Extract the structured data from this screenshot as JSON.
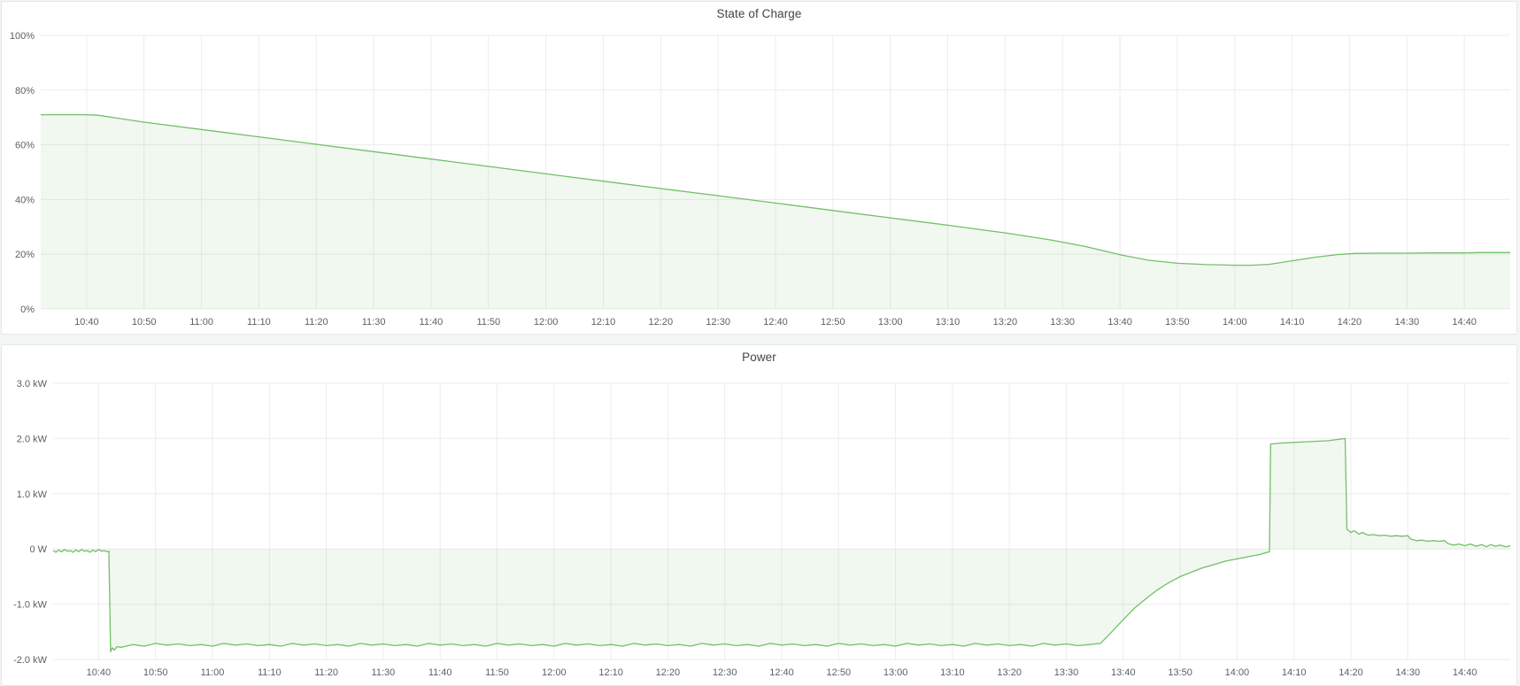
{
  "colors": {
    "series_green": "#73bf69",
    "series_fill": "rgba(115,191,105,0.10)",
    "page_bg": "#f4f5f5",
    "panel_bg": "#ffffff",
    "panel_border": "#e4e7ea",
    "grid_line": "#ececec",
    "axis_text": "#5c6066",
    "title_text": "#434549"
  },
  "panels": [
    {
      "title": "State of Charge"
    },
    {
      "title": "Power"
    }
  ],
  "chart_data": [
    {
      "type": "area",
      "title": "State of Charge",
      "unit": "percent",
      "legend_position": "none",
      "grid": true,
      "line_color": "#73bf69",
      "fill_color": "rgba(115,191,105,0.10)",
      "time_base": "10:30",
      "x_start": "10:32",
      "x_end": "14:48",
      "x_tick_labels": [
        "10:40",
        "10:50",
        "11:00",
        "11:10",
        "11:20",
        "11:30",
        "11:40",
        "11:50",
        "12:00",
        "12:10",
        "12:20",
        "12:30",
        "12:40",
        "12:50",
        "13:00",
        "13:10",
        "13:20",
        "13:30",
        "13:40",
        "13:50",
        "14:00",
        "14:10",
        "14:20",
        "14:30",
        "14:40"
      ],
      "y_tick_labels": [
        "100%",
        "80%",
        "60%",
        "40%",
        "20%",
        "0%"
      ],
      "y_tick_values": [
        100,
        80,
        60,
        40,
        20,
        0
      ],
      "ylim": [
        0,
        100
      ],
      "points": [
        [
          2,
          71
        ],
        [
          7,
          71
        ],
        [
          10,
          71
        ],
        [
          12,
          70.8
        ],
        [
          20,
          68.3
        ],
        [
          30,
          65.6
        ],
        [
          40,
          62.9
        ],
        [
          50,
          60.2
        ],
        [
          60,
          57.5
        ],
        [
          70,
          54.8
        ],
        [
          80,
          52.1
        ],
        [
          90,
          49.4
        ],
        [
          100,
          46.7
        ],
        [
          110,
          44
        ],
        [
          120,
          41.4
        ],
        [
          130,
          38.7
        ],
        [
          140,
          36
        ],
        [
          150,
          33.3
        ],
        [
          160,
          30.6
        ],
        [
          170,
          27.8
        ],
        [
          178,
          25.2
        ],
        [
          184,
          22.8
        ],
        [
          190,
          19.8
        ],
        [
          195,
          17.8
        ],
        [
          200,
          16.7
        ],
        [
          205,
          16.2
        ],
        [
          210,
          16
        ],
        [
          213,
          16
        ],
        [
          216,
          16.3
        ],
        [
          220,
          17.6
        ],
        [
          224,
          18.9
        ],
        [
          228,
          19.9
        ],
        [
          231,
          20.3
        ],
        [
          235,
          20.4
        ],
        [
          240,
          20.4
        ],
        [
          245,
          20.5
        ],
        [
          250,
          20.5
        ],
        [
          253,
          20.6
        ],
        [
          258,
          20.6
        ]
      ]
    },
    {
      "type": "area",
      "title": "Power",
      "unit": "watt",
      "legend_position": "none",
      "grid": true,
      "line_color": "#73bf69",
      "fill_color": "rgba(115,191,105,0.10)",
      "time_base": "10:30",
      "x_start": "10:32",
      "x_end": "14:48",
      "x_tick_labels": [
        "10:40",
        "10:50",
        "11:00",
        "11:10",
        "11:20",
        "11:30",
        "11:40",
        "11:50",
        "12:00",
        "12:10",
        "12:20",
        "12:30",
        "12:40",
        "12:50",
        "13:00",
        "13:10",
        "13:20",
        "13:30",
        "13:40",
        "13:50",
        "14:00",
        "14:10",
        "14:20",
        "14:30",
        "14:40"
      ],
      "y_tick_labels": [
        "3.0 kW",
        "2.0 kW",
        "1.0 kW",
        "0 W",
        "-1.0 kW",
        "-2.0 kW"
      ],
      "y_tick_values": [
        3,
        2,
        1,
        0,
        -1,
        -2
      ],
      "ylim": [
        -2,
        3
      ],
      "points": [
        [
          2,
          -0.03
        ],
        [
          2.5,
          -0.06
        ],
        [
          3,
          -0.02
        ],
        [
          3.5,
          -0.05
        ],
        [
          4,
          -0.01
        ],
        [
          4.5,
          -0.04
        ],
        [
          5,
          -0.03
        ],
        [
          5.5,
          -0.06
        ],
        [
          6,
          -0.02
        ],
        [
          6.5,
          -0.05
        ],
        [
          7,
          -0.01
        ],
        [
          7.5,
          -0.04
        ],
        [
          8,
          -0.03
        ],
        [
          8.5,
          -0.06
        ],
        [
          9,
          -0.02
        ],
        [
          9.5,
          -0.05
        ],
        [
          10,
          -0.01
        ],
        [
          10.5,
          -0.04
        ],
        [
          11,
          -0.03
        ],
        [
          11.5,
          -0.05
        ],
        [
          11.8,
          -0.04
        ],
        [
          12.1,
          -1.86
        ],
        [
          12.4,
          -1.79
        ],
        [
          12.8,
          -1.83
        ],
        [
          13.2,
          -1.77
        ],
        [
          14,
          -1.78
        ],
        [
          16,
          -1.73
        ],
        [
          18,
          -1.76
        ],
        [
          20,
          -1.71
        ],
        [
          22,
          -1.74
        ],
        [
          24,
          -1.72
        ],
        [
          26,
          -1.75
        ],
        [
          28,
          -1.73
        ],
        [
          30,
          -1.76
        ],
        [
          32,
          -1.71
        ],
        [
          34,
          -1.74
        ],
        [
          36,
          -1.72
        ],
        [
          38,
          -1.75
        ],
        [
          40,
          -1.73
        ],
        [
          42,
          -1.76
        ],
        [
          44,
          -1.71
        ],
        [
          46,
          -1.74
        ],
        [
          48,
          -1.72
        ],
        [
          50,
          -1.75
        ],
        [
          52,
          -1.73
        ],
        [
          54,
          -1.76
        ],
        [
          56,
          -1.71
        ],
        [
          58,
          -1.74
        ],
        [
          60,
          -1.72
        ],
        [
          62,
          -1.75
        ],
        [
          64,
          -1.73
        ],
        [
          66,
          -1.76
        ],
        [
          68,
          -1.71
        ],
        [
          70,
          -1.74
        ],
        [
          72,
          -1.72
        ],
        [
          74,
          -1.75
        ],
        [
          76,
          -1.73
        ],
        [
          78,
          -1.76
        ],
        [
          80,
          -1.71
        ],
        [
          82,
          -1.74
        ],
        [
          84,
          -1.72
        ],
        [
          86,
          -1.75
        ],
        [
          88,
          -1.73
        ],
        [
          90,
          -1.76
        ],
        [
          92,
          -1.71
        ],
        [
          94,
          -1.74
        ],
        [
          96,
          -1.72
        ],
        [
          98,
          -1.75
        ],
        [
          100,
          -1.73
        ],
        [
          102,
          -1.76
        ],
        [
          104,
          -1.71
        ],
        [
          106,
          -1.74
        ],
        [
          108,
          -1.72
        ],
        [
          110,
          -1.75
        ],
        [
          112,
          -1.73
        ],
        [
          114,
          -1.76
        ],
        [
          116,
          -1.71
        ],
        [
          118,
          -1.74
        ],
        [
          120,
          -1.72
        ],
        [
          122,
          -1.75
        ],
        [
          124,
          -1.73
        ],
        [
          126,
          -1.76
        ],
        [
          128,
          -1.71
        ],
        [
          130,
          -1.74
        ],
        [
          132,
          -1.72
        ],
        [
          134,
          -1.75
        ],
        [
          136,
          -1.73
        ],
        [
          138,
          -1.76
        ],
        [
          140,
          -1.71
        ],
        [
          142,
          -1.74
        ],
        [
          144,
          -1.72
        ],
        [
          146,
          -1.75
        ],
        [
          148,
          -1.73
        ],
        [
          150,
          -1.76
        ],
        [
          152,
          -1.71
        ],
        [
          154,
          -1.74
        ],
        [
          156,
          -1.72
        ],
        [
          158,
          -1.75
        ],
        [
          160,
          -1.73
        ],
        [
          162,
          -1.76
        ],
        [
          164,
          -1.71
        ],
        [
          166,
          -1.74
        ],
        [
          168,
          -1.72
        ],
        [
          170,
          -1.75
        ],
        [
          172,
          -1.73
        ],
        [
          174,
          -1.76
        ],
        [
          176,
          -1.71
        ],
        [
          178,
          -1.74
        ],
        [
          180,
          -1.72
        ],
        [
          182,
          -1.75
        ],
        [
          184,
          -1.73
        ],
        [
          186,
          -1.71
        ],
        [
          188,
          -1.5
        ],
        [
          190,
          -1.28
        ],
        [
          192,
          -1.07
        ],
        [
          194,
          -0.9
        ],
        [
          196,
          -0.74
        ],
        [
          198,
          -0.61
        ],
        [
          200,
          -0.5
        ],
        [
          202,
          -0.42
        ],
        [
          204,
          -0.34
        ],
        [
          206,
          -0.28
        ],
        [
          208,
          -0.22
        ],
        [
          210,
          -0.18
        ],
        [
          212,
          -0.14
        ],
        [
          214,
          -0.1
        ],
        [
          215,
          -0.07
        ],
        [
          215.7,
          -0.05
        ],
        [
          215.9,
          1.9
        ],
        [
          218,
          1.92
        ],
        [
          220,
          1.93
        ],
        [
          222,
          1.94
        ],
        [
          224,
          1.95
        ],
        [
          226,
          1.96
        ],
        [
          227.5,
          1.98
        ],
        [
          229,
          2.0
        ],
        [
          229.3,
          0.36
        ],
        [
          230,
          0.3
        ],
        [
          230.6,
          0.33
        ],
        [
          231.4,
          0.27
        ],
        [
          232,
          0.3
        ],
        [
          233,
          0.25
        ],
        [
          234,
          0.26
        ],
        [
          235,
          0.24
        ],
        [
          236,
          0.25
        ],
        [
          237,
          0.23
        ],
        [
          238,
          0.24
        ],
        [
          239,
          0.23
        ],
        [
          240,
          0.24
        ],
        [
          240.5,
          0.18
        ],
        [
          241.5,
          0.15
        ],
        [
          242.5,
          0.16
        ],
        [
          243.5,
          0.14
        ],
        [
          244.5,
          0.15
        ],
        [
          245.5,
          0.14
        ],
        [
          246.5,
          0.15
        ],
        [
          247,
          0.1
        ],
        [
          248,
          0.07
        ],
        [
          249,
          0.09
        ],
        [
          250,
          0.06
        ],
        [
          251,
          0.09
        ],
        [
          252,
          0.05
        ],
        [
          253,
          0.08
        ],
        [
          253.8,
          0.04
        ],
        [
          254.6,
          0.08
        ],
        [
          255.4,
          0.05
        ],
        [
          256.2,
          0.07
        ],
        [
          257.2,
          0.04
        ],
        [
          258,
          0.06
        ]
      ]
    }
  ]
}
